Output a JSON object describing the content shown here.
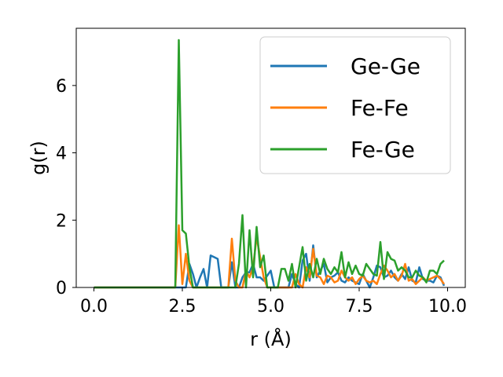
{
  "chart_data": {
    "type": "line",
    "xlabel": "r (Å)",
    "ylabel": "g(r)",
    "xlim": [
      -0.5,
      10.5
    ],
    "ylim": [
      0,
      7.7
    ],
    "x_ticks": [
      "0.0",
      "2.5",
      "5.0",
      "7.5",
      "10.0"
    ],
    "y_ticks": [
      "0",
      "2",
      "4",
      "6"
    ],
    "grid": false,
    "legend_position": "top-right",
    "series": [
      {
        "name": "Ge-Ge",
        "color": "#1f77b4",
        "x": [
          0,
          0.1,
          0.2,
          0.3,
          0.4,
          0.5,
          0.6,
          0.7,
          0.8,
          0.9,
          1.0,
          1.1,
          1.2,
          1.3,
          1.4,
          1.5,
          1.6,
          1.7,
          1.8,
          1.9,
          2.0,
          2.1,
          2.2,
          2.3,
          2.4,
          2.5,
          2.6,
          2.7,
          2.8,
          2.9,
          3.0,
          3.1,
          3.2,
          3.3,
          3.4,
          3.5,
          3.6,
          3.7,
          3.8,
          3.9,
          4.0,
          4.1,
          4.2,
          4.3,
          4.4,
          4.5,
          4.6,
          4.7,
          4.8,
          4.9,
          5.0,
          5.1,
          5.2,
          5.3,
          5.4,
          5.5,
          5.6,
          5.7,
          5.8,
          5.9,
          6.0,
          6.1,
          6.2,
          6.3,
          6.4,
          6.5,
          6.6,
          6.7,
          6.8,
          6.9,
          7.0,
          7.1,
          7.2,
          7.3,
          7.4,
          7.5,
          7.6,
          7.7,
          7.8,
          7.9,
          8.0,
          8.1,
          8.2,
          8.3,
          8.4,
          8.5,
          8.6,
          8.7,
          8.8,
          8.9,
          9.0,
          9.1,
          9.2,
          9.3,
          9.4,
          9.5,
          9.6,
          9.7,
          9.8,
          9.9
        ],
        "values": [
          0,
          0,
          0,
          0,
          0,
          0,
          0,
          0,
          0,
          0,
          0,
          0,
          0,
          0,
          0,
          0,
          0,
          0,
          0,
          0,
          0,
          0,
          0,
          0,
          0,
          0,
          0,
          0.7,
          0.4,
          0,
          0.3,
          0.55,
          0,
          0.95,
          0.9,
          0.85,
          0,
          0,
          0,
          0.75,
          0,
          0,
          0.3,
          0.45,
          0.45,
          0.7,
          0.3,
          0.3,
          0.2,
          0.35,
          0.5,
          0,
          0,
          0,
          0,
          0,
          0.4,
          0.1,
          0,
          0.8,
          1.0,
          0.2,
          1.25,
          0.3,
          0.5,
          0.7,
          0.15,
          0.3,
          0.35,
          0.45,
          0.2,
          0.15,
          0.3,
          0.2,
          0.15,
          0.1,
          0.4,
          0.2,
          0,
          0.3,
          0.65,
          0.6,
          0.3,
          0.35,
          0.5,
          0.3,
          0.2,
          0.4,
          0.25,
          0.6,
          0.2,
          0.15,
          0.6,
          0.25,
          0.2,
          0.2,
          0.15,
          0.35,
          0.3,
          0.05
        ]
      },
      {
        "name": "Fe-Fe",
        "color": "#ff7f0e",
        "x": [
          0,
          0.1,
          0.2,
          0.3,
          0.4,
          0.5,
          0.6,
          0.7,
          0.8,
          0.9,
          1.0,
          1.1,
          1.2,
          1.3,
          1.4,
          1.5,
          1.6,
          1.7,
          1.8,
          1.9,
          2.0,
          2.1,
          2.2,
          2.3,
          2.4,
          2.5,
          2.6,
          2.7,
          2.8,
          2.9,
          3.0,
          3.1,
          3.2,
          3.3,
          3.4,
          3.5,
          3.6,
          3.7,
          3.8,
          3.9,
          4.0,
          4.1,
          4.2,
          4.3,
          4.4,
          4.5,
          4.6,
          4.7,
          4.8,
          4.9,
          5.0,
          5.1,
          5.2,
          5.3,
          5.4,
          5.5,
          5.6,
          5.7,
          5.8,
          5.9,
          6.0,
          6.1,
          6.2,
          6.3,
          6.4,
          6.5,
          6.6,
          6.7,
          6.8,
          6.9,
          7.0,
          7.1,
          7.2,
          7.3,
          7.4,
          7.5,
          7.6,
          7.7,
          7.8,
          7.9,
          8.0,
          8.1,
          8.2,
          8.3,
          8.4,
          8.5,
          8.6,
          8.7,
          8.8,
          8.9,
          9.0,
          9.1,
          9.2,
          9.3,
          9.4,
          9.5,
          9.6,
          9.7,
          9.8,
          9.9
        ],
        "values": [
          0,
          0,
          0,
          0,
          0,
          0,
          0,
          0,
          0,
          0,
          0,
          0,
          0,
          0,
          0,
          0,
          0,
          0,
          0,
          0,
          0,
          0,
          0,
          0,
          1.85,
          0.1,
          1.0,
          0.2,
          0,
          0,
          0,
          0,
          0,
          0,
          0,
          0,
          0,
          0,
          0,
          1.45,
          0.2,
          0,
          0,
          0.5,
          0.3,
          0.6,
          1.5,
          0.9,
          0.3,
          0,
          0,
          0,
          0,
          0,
          0,
          0,
          0,
          0.4,
          0.1,
          0,
          0.6,
          0.3,
          1.15,
          0.35,
          0.3,
          0.1,
          0.35,
          0.3,
          0.15,
          0.2,
          0.5,
          0.3,
          0.2,
          0.3,
          0.1,
          0.25,
          0.35,
          0.2,
          0.15,
          0.2,
          0.1,
          0.4,
          0.65,
          0.5,
          0.3,
          0.4,
          0.2,
          0.35,
          0.7,
          0.2,
          0.25,
          0.1,
          0.2,
          0.3,
          0.2,
          0.25,
          0.3,
          0.35,
          0.25,
          0.1
        ]
      },
      {
        "name": "Fe-Ge",
        "color": "#2ca02c",
        "x": [
          0,
          0.1,
          0.2,
          0.3,
          0.4,
          0.5,
          0.6,
          0.7,
          0.8,
          0.9,
          1.0,
          1.1,
          1.2,
          1.3,
          1.4,
          1.5,
          1.6,
          1.7,
          1.8,
          1.9,
          2.0,
          2.1,
          2.2,
          2.3,
          2.4,
          2.5,
          2.6,
          2.7,
          2.8,
          2.9,
          3.0,
          3.1,
          3.2,
          3.3,
          3.4,
          3.5,
          3.6,
          3.7,
          3.8,
          3.9,
          4.0,
          4.1,
          4.2,
          4.3,
          4.4,
          4.5,
          4.6,
          4.7,
          4.8,
          4.9,
          5.0,
          5.1,
          5.2,
          5.3,
          5.4,
          5.5,
          5.6,
          5.7,
          5.8,
          5.9,
          6.0,
          6.1,
          6.2,
          6.3,
          6.4,
          6.5,
          6.6,
          6.7,
          6.8,
          6.9,
          7.0,
          7.1,
          7.2,
          7.3,
          7.4,
          7.5,
          7.6,
          7.7,
          7.8,
          7.9,
          8.0,
          8.1,
          8.2,
          8.3,
          8.4,
          8.5,
          8.6,
          8.7,
          8.8,
          8.9,
          9.0,
          9.1,
          9.2,
          9.3,
          9.4,
          9.5,
          9.6,
          9.7,
          9.8,
          9.9
        ],
        "values": [
          0,
          0,
          0,
          0,
          0,
          0,
          0,
          0,
          0,
          0,
          0,
          0,
          0,
          0,
          0,
          0,
          0,
          0,
          0,
          0,
          0,
          0,
          0,
          0,
          7.35,
          1.7,
          1.6,
          0.6,
          0,
          0,
          0,
          0,
          0,
          0,
          0,
          0,
          0,
          0,
          0,
          0,
          0,
          0.7,
          2.15,
          0,
          1.7,
          0.3,
          1.8,
          0.6,
          0.95,
          0,
          0,
          0,
          0,
          0.55,
          0.55,
          0.2,
          0.7,
          0,
          0.6,
          1.2,
          0.2,
          0.7,
          0.3,
          0.85,
          0.4,
          0.85,
          0.55,
          0.4,
          0.6,
          0.45,
          1.05,
          0.3,
          0.75,
          0.4,
          0.65,
          0.4,
          0.35,
          0.7,
          0.55,
          0.4,
          0.35,
          1.35,
          0.25,
          1.05,
          0.85,
          0.8,
          0.5,
          0.6,
          0.5,
          0.3,
          0.3,
          0.5,
          0.35,
          0.3,
          0.15,
          0.5,
          0.5,
          0.4,
          0.7,
          0.8
        ]
      }
    ]
  }
}
